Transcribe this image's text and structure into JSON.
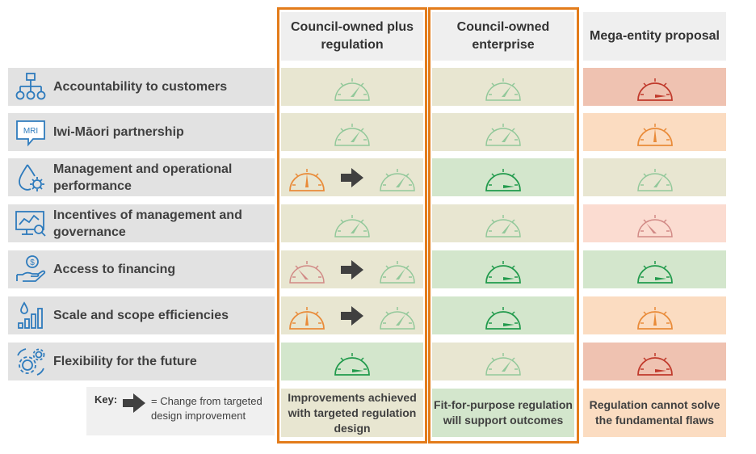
{
  "headers": {
    "col1": "Council-owned plus regulation",
    "col2": "Council-owned enterprise",
    "col3": "Mega-entity proposal"
  },
  "rows": [
    {
      "label": "Accountability to customers",
      "icon": "org-chart-icon"
    },
    {
      "label": "Iwi-Māori partnership",
      "icon": "speech-bubble-icon",
      "icon_text": "MRI"
    },
    {
      "label": "Management and operational performance",
      "icon": "water-gear-icon"
    },
    {
      "label": "Incentives of management and governance",
      "icon": "monitor-analytics-icon"
    },
    {
      "label": "Access to financing",
      "icon": "hand-coin-icon"
    },
    {
      "label": "Scale and scope efficiencies",
      "icon": "bar-chart-drop-icon"
    },
    {
      "label": "Flexibility for the future",
      "icon": "gears-icon"
    }
  ],
  "key": {
    "title": "Key:",
    "description": "= Change from targeted design improvement",
    "icon": "arrow-right-icon"
  },
  "footers": {
    "col1": "Improvements achieved with targeted regulation design",
    "col2": "Fit-for-purpose regulation will support outcomes",
    "col3": "Regulation cannot solve the fundamental flaws"
  },
  "colors": {
    "highlight_border": "#e37c1b",
    "gauge_green_light": "#92c89a",
    "gauge_green_dark": "#219a4c",
    "gauge_orange": "#e98b39",
    "gauge_red": "#c0392b",
    "gauge_red_light": "#d18a86"
  },
  "ratings": [
    {
      "col1": {
        "from": "pale-green",
        "to": null
      },
      "col2": "pale-green",
      "col3": "red"
    },
    {
      "col1": {
        "from": "pale-green",
        "to": null
      },
      "col2": "pale-green",
      "col3": "orange"
    },
    {
      "col1": {
        "from": "orange",
        "to": "pale-green"
      },
      "col2": "dark-green",
      "col3": "pale-green"
    },
    {
      "col1": {
        "from": "pale-green",
        "to": null
      },
      "col2": "pale-green",
      "col3": "pale-red"
    },
    {
      "col1": {
        "from": "pale-red",
        "to": "pale-green"
      },
      "col2": "dark-green",
      "col3": "dark-green"
    },
    {
      "col1": {
        "from": "orange",
        "to": "pale-green"
      },
      "col2": "dark-green",
      "col3": "orange"
    },
    {
      "col1": {
        "from": "dark-green",
        "to": null
      },
      "col2": "pale-green",
      "col3": "red"
    }
  ]
}
